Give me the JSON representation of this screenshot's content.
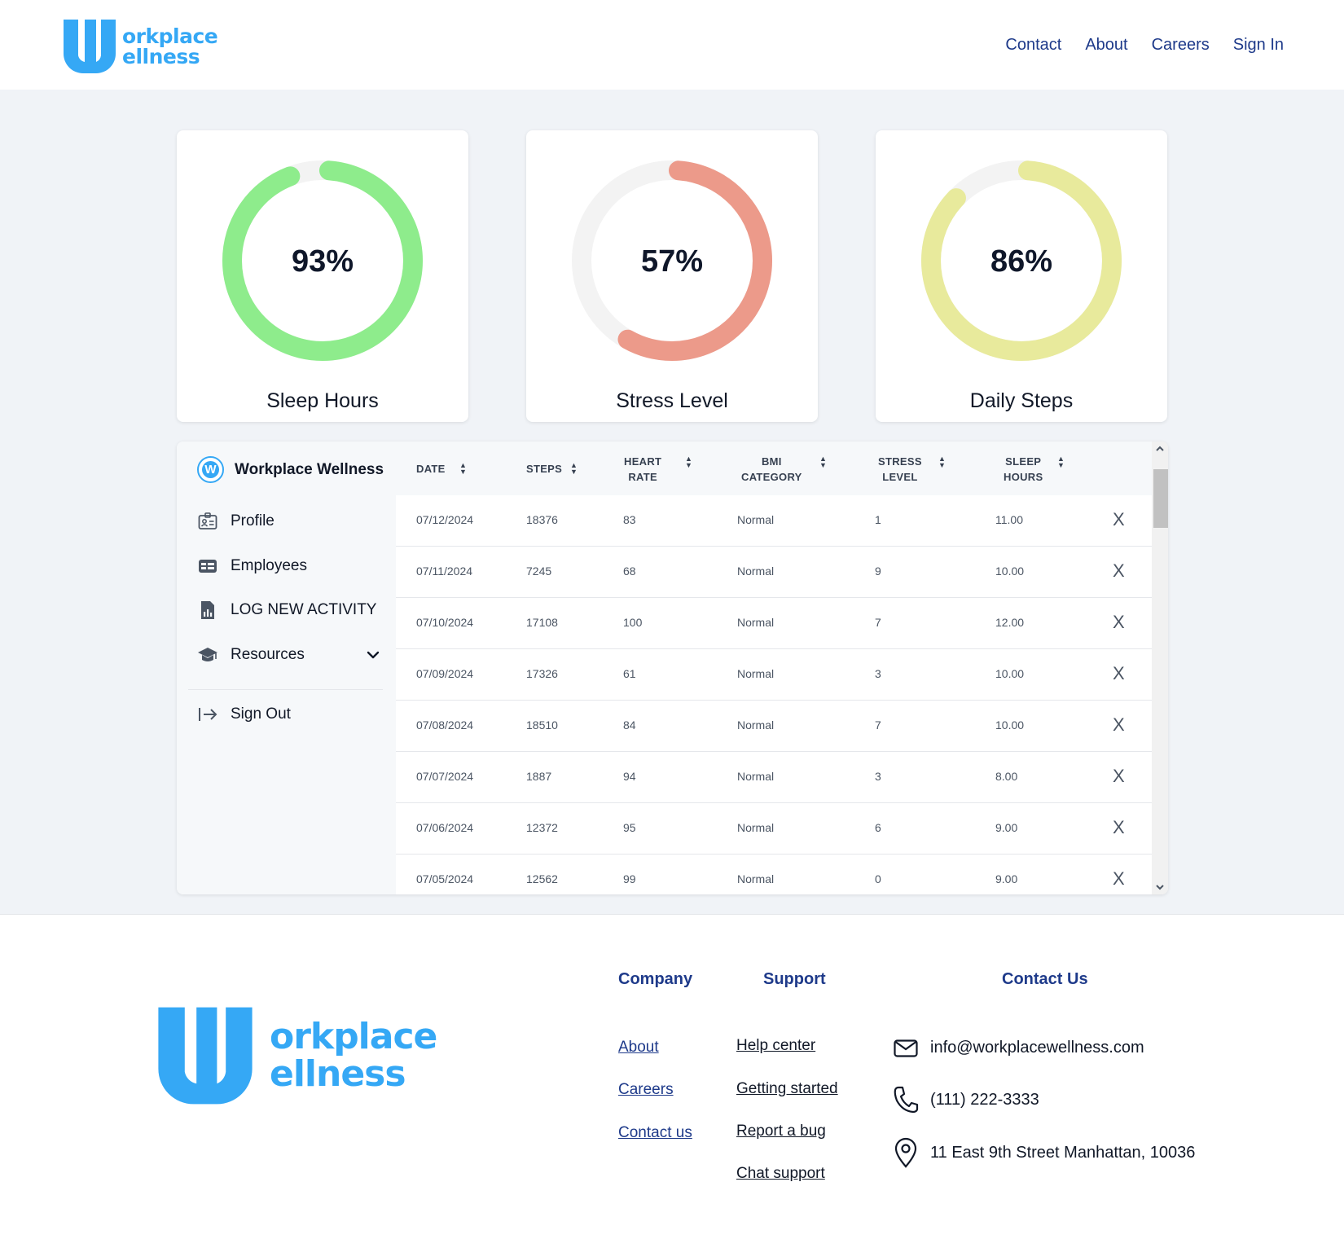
{
  "brand": {
    "logo_line1": "orkplace",
    "logo_line2": "ellness",
    "logo_letter": "W",
    "name": "Workplace Wellness",
    "color": "#35a8f5"
  },
  "nav": {
    "contact": "Contact",
    "about": "About",
    "careers": "Careers",
    "sign_in": "Sign In"
  },
  "gauges": [
    {
      "label": "Sleep Hours",
      "value_text": "93%",
      "value": 93,
      "color": "#8eec8c"
    },
    {
      "label": "Stress Level",
      "value_text": "57%",
      "value": 57,
      "color": "#ec9a8a"
    },
    {
      "label": "Daily Steps",
      "value_text": "86%",
      "value": 86,
      "color": "#e8ea9c"
    }
  ],
  "sidebar": {
    "items": [
      {
        "label": "Profile",
        "icon": "id-card-icon"
      },
      {
        "label": "Employees",
        "icon": "table-icon"
      },
      {
        "label": "LOG NEW ACTIVITY",
        "icon": "report-icon"
      },
      {
        "label": "Resources",
        "icon": "graduation-cap-icon"
      }
    ],
    "sign_out": "Sign Out"
  },
  "table": {
    "headers": {
      "date": "DATE",
      "steps": "STEPS",
      "heart_rate_1": "HEART",
      "heart_rate_2": "RATE",
      "bmi_1": "BMI",
      "bmi_2": "CATEGORY",
      "stress_1": "STRESS",
      "stress_2": "LEVEL",
      "sleep_1": "SLEEP",
      "sleep_2": "HOURS"
    },
    "delete_symbol": "X",
    "rows": [
      {
        "date": "07/12/2024",
        "steps": "18376",
        "heart_rate": "83",
        "bmi": "Normal",
        "stress": "1",
        "sleep": "11.00"
      },
      {
        "date": "07/11/2024",
        "steps": "7245",
        "heart_rate": "68",
        "bmi": "Normal",
        "stress": "9",
        "sleep": "10.00"
      },
      {
        "date": "07/10/2024",
        "steps": "17108",
        "heart_rate": "100",
        "bmi": "Normal",
        "stress": "7",
        "sleep": "12.00"
      },
      {
        "date": "07/09/2024",
        "steps": "17326",
        "heart_rate": "61",
        "bmi": "Normal",
        "stress": "3",
        "sleep": "10.00"
      },
      {
        "date": "07/08/2024",
        "steps": "18510",
        "heart_rate": "84",
        "bmi": "Normal",
        "stress": "7",
        "sleep": "10.00"
      },
      {
        "date": "07/07/2024",
        "steps": "1887",
        "heart_rate": "94",
        "bmi": "Normal",
        "stress": "3",
        "sleep": "8.00"
      },
      {
        "date": "07/06/2024",
        "steps": "12372",
        "heart_rate": "95",
        "bmi": "Normal",
        "stress": "6",
        "sleep": "9.00"
      },
      {
        "date": "07/05/2024",
        "steps": "12562",
        "heart_rate": "99",
        "bmi": "Normal",
        "stress": "0",
        "sleep": "9.00"
      }
    ]
  },
  "footer": {
    "company": {
      "title": "Company",
      "links": [
        "About",
        "Careers",
        "Contact us"
      ]
    },
    "support": {
      "title": "Support",
      "links": [
        "Help center",
        "Getting started",
        "Report a bug",
        "Chat support"
      ]
    },
    "contact": {
      "title": "Contact Us",
      "email": "info@workplacewellness.com",
      "phone": "(111) 222-3333",
      "address": "11 East 9th Street Manhattan, 10036"
    }
  }
}
